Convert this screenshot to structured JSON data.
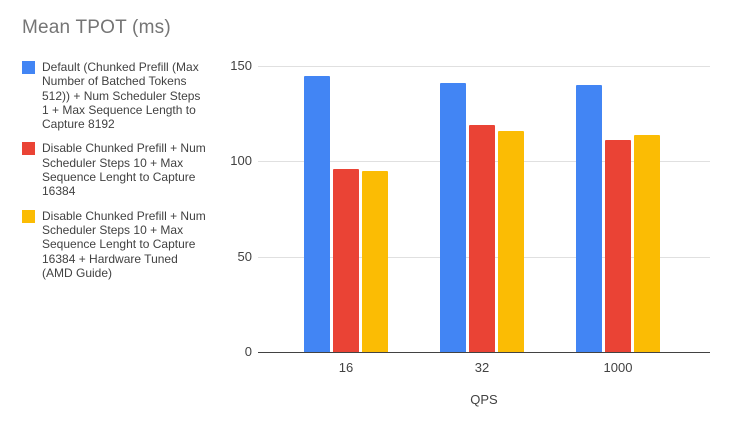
{
  "chart_data": {
    "type": "bar",
    "title": "Mean TPOT (ms)",
    "title_color": "#757575",
    "xlabel": "QPS",
    "ylabel": "",
    "categories": [
      "16",
      "32",
      "1000"
    ],
    "series": [
      {
        "name": "Default (Chunked Prefill (Max Number of Batched Tokens 512)) + Num Scheduler Steps 1 + Max Sequence Length to Capture 8192",
        "color": "#4285F4",
        "values": [
          145,
          141,
          140
        ]
      },
      {
        "name": "Disable Chunked Prefill + Num Scheduler Steps 10 + Max Sequence Lenght to Capture 16384",
        "color": "#EA4335",
        "values": [
          96,
          119,
          111
        ]
      },
      {
        "name": "Disable Chunked Prefill + Num Scheduler Steps 10 + Max Sequence Lenght to Capture 16384 + Hardware Tuned (AMD Guide)",
        "color": "#FBBC04",
        "values": [
          95,
          116,
          114
        ]
      }
    ],
    "ylim": [
      0,
      150
    ],
    "yticks": [
      0,
      50,
      100,
      150
    ],
    "grid": true,
    "legend_position": "left",
    "text_color": "#424242",
    "grid_color": "#e0e0e0",
    "axis_color": "#424242"
  }
}
